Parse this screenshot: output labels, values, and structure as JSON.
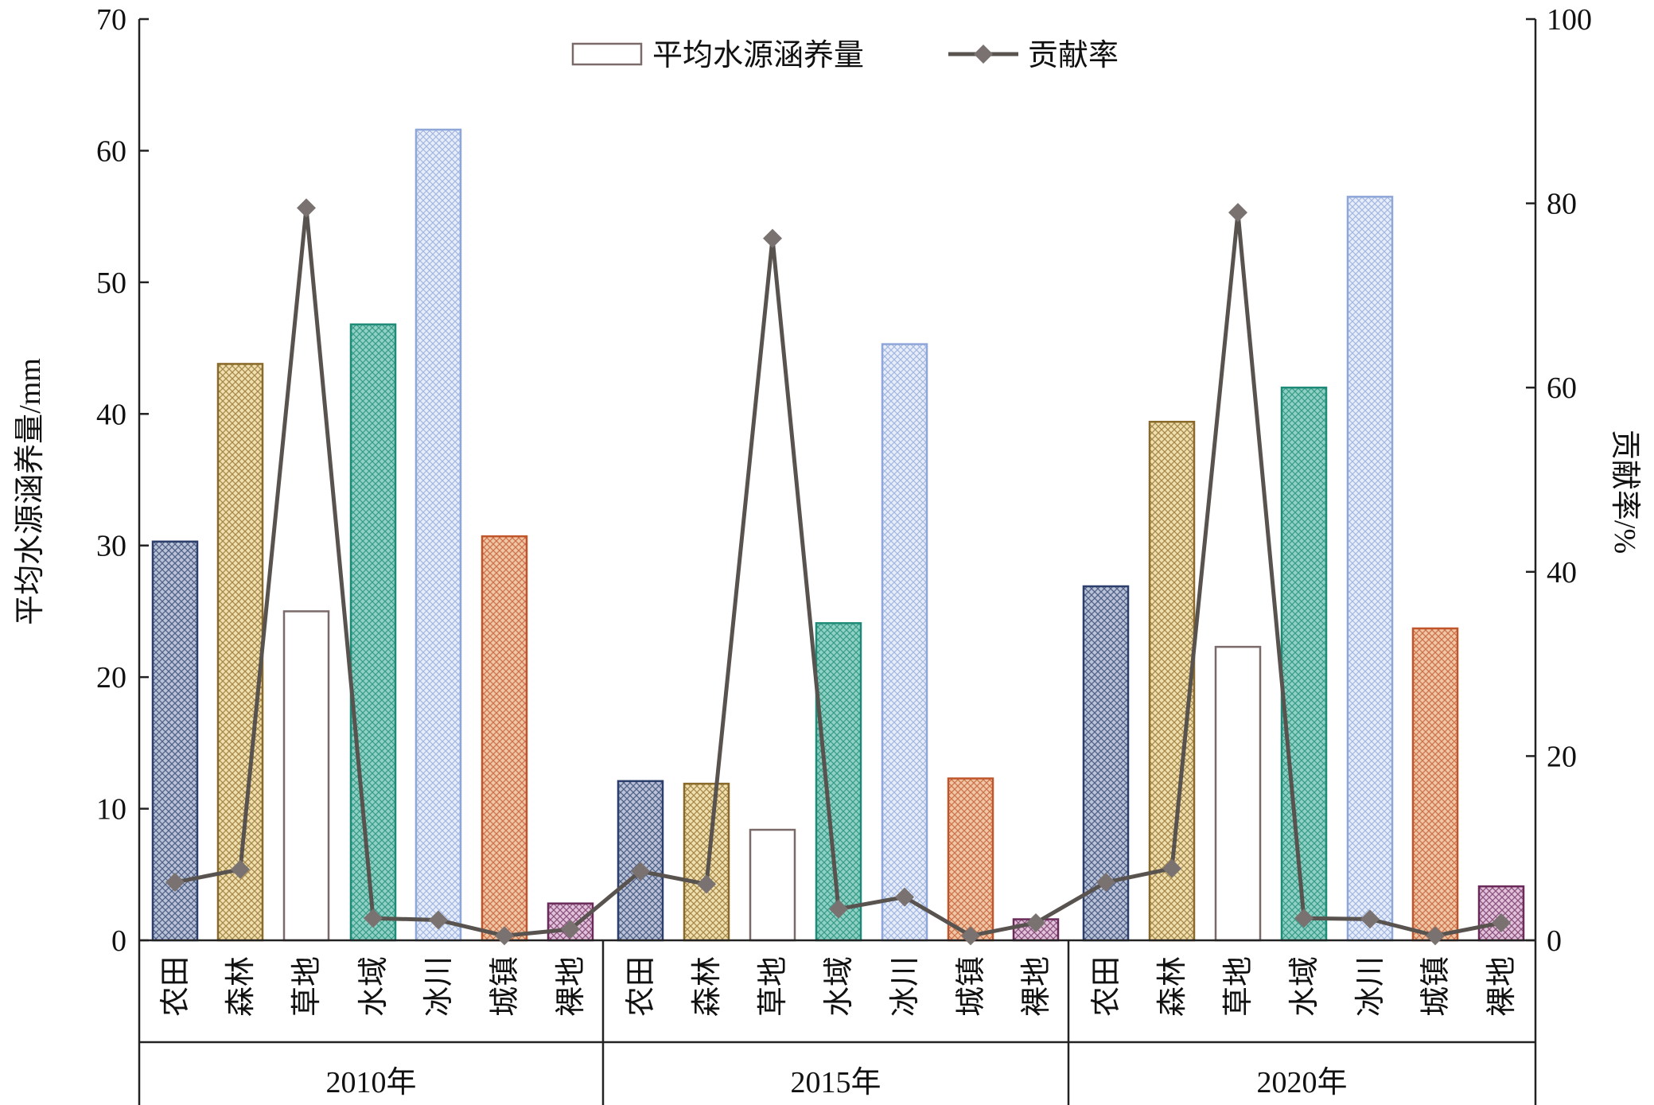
{
  "chart_data": {
    "type": "bar",
    "groups": [
      "2010年",
      "2015年",
      "2020年"
    ],
    "categories": [
      "农田",
      "森林",
      "草地",
      "水域",
      "冰川",
      "城镇",
      "裸地"
    ],
    "ylabel_left": "平均水源涵养量/mm",
    "ylabel_right": "贡献率/%",
    "ylim_left": [
      0,
      70
    ],
    "ylim_right": [
      0,
      100
    ],
    "yticks_left": [
      0,
      10,
      20,
      30,
      40,
      50,
      60,
      70
    ],
    "yticks_right": [
      0,
      20,
      40,
      60,
      80,
      100
    ],
    "legend": {
      "placement": "top-center",
      "bar_label": "平均水源涵养量",
      "line_label": "贡献率"
    },
    "category_colors": [
      "#2c3e6b",
      "#8a6a2a",
      "#7a6a6a",
      "#1e8a78",
      "#8fa6d8",
      "#c0552c",
      "#6a2a5a"
    ],
    "category_fills": [
      "#b9c2d6",
      "#f1dfae",
      "#ffffff",
      "#8fd1c2",
      "#e7eefa",
      "#f0c7a6",
      "#e3c2dc"
    ],
    "series": [
      {
        "name": "平均水源涵养量",
        "axis": "left",
        "kind": "bar",
        "values": [
          [
            30.3,
            43.8,
            25.0,
            46.8,
            61.6,
            30.7,
            2.8
          ],
          [
            12.1,
            11.9,
            8.4,
            24.1,
            45.3,
            12.3,
            1.6
          ],
          [
            26.9,
            39.4,
            22.3,
            42.0,
            56.5,
            23.7,
            4.1
          ]
        ]
      },
      {
        "name": "贡献率",
        "axis": "right",
        "kind": "line",
        "color": "#595350",
        "values": [
          [
            6.3,
            7.7,
            79.5,
            2.4,
            2.2,
            0.5,
            1.2
          ],
          [
            7.5,
            6.1,
            76.2,
            3.4,
            4.7,
            0.5,
            1.9
          ],
          [
            6.3,
            7.8,
            79.0,
            2.4,
            2.3,
            0.5,
            1.9
          ]
        ]
      }
    ]
  }
}
